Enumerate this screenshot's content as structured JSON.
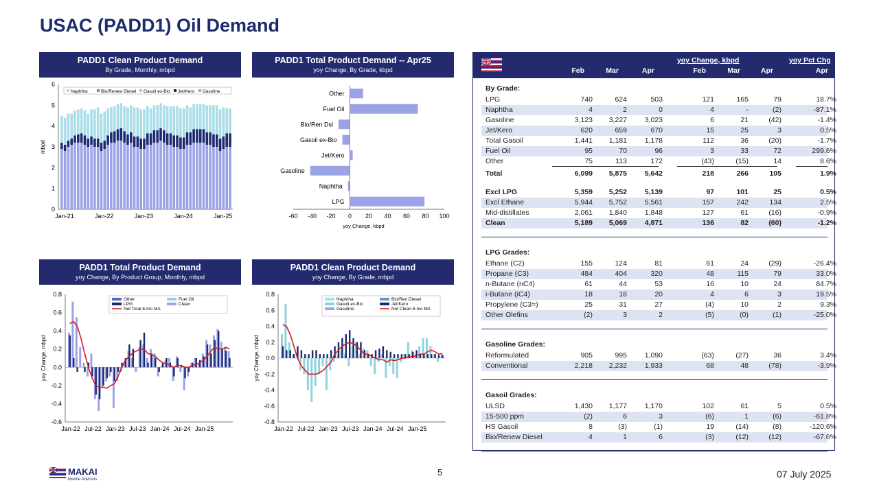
{
  "page_title": "USAC (PADD1) Oil Demand",
  "page_number": "5",
  "date": "07 July 2025",
  "logo": {
    "name": "MAKAI",
    "subtitle": "Marine Advisors"
  },
  "colors": {
    "navy": "#232a6e",
    "naphtha": "#a9dde8",
    "bio": "#6a8fc6",
    "gasoil": "#8fd2de",
    "jet": "#1c2a70",
    "gasoline": "#9aa3e6",
    "ma": "#d7191c"
  },
  "panels": {
    "p1": {
      "title": "PADD1 Clean Product Demand",
      "subtitle": "By Grade, Monthly, mbpd"
    },
    "p2": {
      "title": "PADD1 Total Product Demand -- Apr25",
      "subtitle": "yoy Change, By Grade, kbpd"
    },
    "p3": {
      "title": "PADD1 Total Product Demand",
      "subtitle": "yoy Change, By Product Group, Monthly, mbpd"
    },
    "p4": {
      "title": "PADD1 Clean Product Demand",
      "subtitle": "yoy Change, By Grade, mbpd"
    }
  },
  "chart_data": [
    {
      "type": "bar",
      "stacked": true,
      "ylabel": "mbpd",
      "ylim": [
        0,
        6
      ],
      "yticks": [
        "0",
        "1",
        "2",
        "3",
        "4",
        "5",
        "6"
      ],
      "xticks": [
        "Jan-21",
        "Jan-22",
        "Jan-23",
        "Jan-24",
        "Jan-25"
      ],
      "legend": [
        "Naphtha",
        "Bio/Renew Diesel",
        "Gasoil ex-Bio",
        "Jet/Kero",
        "Gasoline"
      ],
      "gasoline": [
        2.9,
        2.8,
        3.0,
        3.1,
        3.2,
        3.2,
        3.2,
        3.1,
        3.0,
        3.1,
        3.0,
        3.0,
        2.8,
        2.9,
        3.1,
        3.2,
        3.2,
        3.3,
        3.3,
        3.2,
        3.1,
        3.2,
        3.0,
        3.0,
        2.9,
        2.9,
        3.1,
        3.1,
        3.2,
        3.2,
        3.3,
        3.2,
        3.1,
        3.1,
        3.0,
        3.0,
        2.9,
        2.9,
        3.1,
        3.1,
        3.2,
        3.2,
        3.2,
        3.2,
        3.1,
        3.1,
        3.0,
        3.0,
        2.8,
        2.9,
        3.0,
        3.0
      ],
      "jet": [
        0.3,
        0.3,
        0.3,
        0.3,
        0.35,
        0.4,
        0.45,
        0.45,
        0.4,
        0.4,
        0.4,
        0.4,
        0.4,
        0.4,
        0.45,
        0.5,
        0.55,
        0.55,
        0.6,
        0.55,
        0.5,
        0.5,
        0.5,
        0.5,
        0.5,
        0.5,
        0.55,
        0.55,
        0.6,
        0.6,
        0.6,
        0.6,
        0.55,
        0.55,
        0.55,
        0.55,
        0.55,
        0.55,
        0.6,
        0.6,
        0.65,
        0.65,
        0.65,
        0.65,
        0.6,
        0.6,
        0.6,
        0.6,
        0.6,
        0.6,
        0.65,
        0.65
      ],
      "gasoil": [
        1.3,
        1.3,
        1.3,
        1.2,
        1.2,
        1.2,
        1.2,
        1.2,
        1.2,
        1.3,
        1.4,
        1.5,
        1.4,
        1.4,
        1.3,
        1.2,
        1.2,
        1.2,
        1.2,
        1.2,
        1.3,
        1.3,
        1.4,
        1.4,
        1.4,
        1.4,
        1.3,
        1.2,
        1.2,
        1.2,
        1.2,
        1.2,
        1.3,
        1.3,
        1.4,
        1.4,
        1.4,
        1.4,
        1.3,
        1.2,
        1.2,
        1.2,
        1.2,
        1.2,
        1.3,
        1.3,
        1.4,
        1.4,
        1.4,
        1.4,
        1.2,
        1.2
      ]
    },
    {
      "type": "bar",
      "orientation": "horizontal",
      "categories": [
        "Other",
        "Fuel Oil",
        "Bio/Ren Dsl",
        "Gasoil ex-Bio",
        "Jet/Kero",
        "Gasoline",
        "Naphtha",
        "LPG"
      ],
      "values": [
        14,
        72,
        -12,
        -8,
        3,
        -42,
        -2,
        79
      ],
      "xlim": [
        -60,
        100
      ],
      "xticks": [
        "-60",
        "-40",
        "-20",
        "0",
        "20",
        "40",
        "60",
        "80",
        "100"
      ],
      "xlabel": "yoy Change, kbpd"
    },
    {
      "type": "bar",
      "ylabel": "yoy Change, mbpd",
      "ylim": [
        -0.6,
        0.8
      ],
      "yticks": [
        "-0.6",
        "-0.4",
        "-0.2",
        "0.0",
        "0.2",
        "0.4",
        "0.6",
        "0.8"
      ],
      "xticks": [
        "Jan-22",
        "Jul-22",
        "Jan-23",
        "Jul-23",
        "Jan-24",
        "Jul-24",
        "Jan-25"
      ],
      "legend": [
        "Other",
        "Fuel Oil",
        "LPG",
        "Clean",
        "Net Total 6-mo MA"
      ],
      "clean": [
        0.38,
        0.72,
        0.55,
        0.22,
        0.05,
        -0.1,
        0.15,
        -0.35,
        -0.48,
        -0.22,
        -0.15,
        -0.1,
        -0.45,
        -0.15,
        -0.05,
        0.05,
        0.18,
        0.1,
        -0.05,
        0.22,
        0.25,
        0.1,
        0.2,
        0.15,
        -0.1,
        0.02,
        0.08,
        0.1,
        -0.15,
        0.12,
        -0.05,
        -0.25,
        -0.1,
        0.05,
        0.1,
        0.05,
        0.15,
        0.3,
        0.25,
        0.35,
        0.42,
        0.28,
        0.22,
        0.18
      ],
      "lpg": [
        0.35,
        0.1,
        -0.05,
        0.0,
        -0.05,
        0.05,
        -0.1,
        -0.3,
        -0.35,
        -0.2,
        -0.12,
        -0.05,
        -0.15,
        -0.05,
        0.05,
        0.1,
        0.25,
        0.2,
        0.0,
        0.3,
        0.38,
        0.05,
        0.15,
        0.1,
        -0.05,
        0.05,
        0.1,
        0.05,
        -0.1,
        0.1,
        0.02,
        -0.12,
        -0.05,
        0.05,
        0.1,
        0.08,
        0.12,
        0.25,
        0.15,
        0.3,
        0.4,
        0.2,
        0.18,
        0.1
      ],
      "ma": [
        0.48,
        0.5,
        0.45,
        0.32,
        0.15,
        0.0,
        -0.12,
        -0.2,
        -0.22,
        -0.22,
        -0.23,
        -0.2,
        -0.18,
        -0.1,
        0.0,
        0.08,
        0.12,
        0.16,
        0.18,
        0.2,
        0.2,
        0.15,
        0.14,
        0.12,
        0.08,
        0.05,
        0.04,
        0.02,
        0.0,
        0.02,
        0.02,
        0.0,
        0.0,
        0.02,
        0.03,
        0.05,
        0.08,
        0.12,
        0.18,
        0.22,
        0.2,
        0.2,
        0.22,
        0.2
      ]
    },
    {
      "type": "bar",
      "ylabel": "yoy Change, mbpd",
      "ylim": [
        -0.8,
        0.8
      ],
      "yticks": [
        "-0.8",
        "-0.6",
        "-0.4",
        "-0.2",
        "0.0",
        "0.2",
        "0.4",
        "0.6",
        "0.8"
      ],
      "xticks": [
        "Jan-22",
        "Jul-22",
        "Jan-23",
        "Jul-23",
        "Jan-24",
        "Jul-24",
        "Jan-25"
      ],
      "legend": [
        "Naphtha",
        "Bio/Ren Diesel",
        "Gasoil ex-Bio",
        "Jet/Kero",
        "Gasoline",
        "Net Clean 6-mo MA"
      ],
      "gasoil": [
        0.3,
        0.68,
        0.2,
        0.05,
        0.0,
        -0.15,
        -0.2,
        -0.4,
        -0.55,
        -0.35,
        -0.2,
        -0.1,
        -0.4,
        -0.15,
        -0.05,
        0.05,
        0.1,
        0.05,
        -0.1,
        0.15,
        0.2,
        0.05,
        0.12,
        0.1,
        -0.1,
        -0.2,
        -0.05,
        0.05,
        -0.25,
        -0.1,
        -0.2,
        -0.25,
        -0.05,
        0.05,
        0.2,
        0.1,
        0.05,
        0.15,
        0.25,
        0.25,
        0.15,
        0.05,
        -0.05,
        0.05
      ],
      "jet": [
        0.15,
        0.1,
        0.1,
        0.05,
        0.15,
        0.1,
        0.05,
        0.05,
        0.1,
        0.1,
        0.05,
        0.05,
        0.05,
        0.1,
        0.15,
        0.2,
        0.25,
        0.3,
        0.35,
        0.25,
        0.2,
        0.2,
        0.1,
        0.05,
        0.05,
        0.1,
        0.12,
        0.15,
        0.1,
        0.08,
        0.05,
        0.05,
        0.05,
        0.05,
        0.05,
        0.08,
        0.1,
        0.05,
        0.05,
        0.05,
        0.05,
        0.05,
        0.04,
        0.04
      ],
      "ma": [
        0.42,
        0.4,
        0.3,
        0.15,
        0.0,
        -0.1,
        -0.15,
        -0.2,
        -0.2,
        -0.2,
        -0.18,
        -0.15,
        -0.1,
        -0.05,
        0.05,
        0.1,
        0.15,
        0.18,
        0.2,
        0.18,
        0.15,
        0.1,
        0.05,
        0.05,
        0.02,
        0.0,
        -0.02,
        -0.02,
        -0.05,
        -0.02,
        -0.03,
        -0.02,
        0.0,
        0.0,
        0.02,
        0.02,
        0.03,
        0.05,
        0.05,
        0.08,
        0.1,
        0.08,
        0.05,
        0.06
      ]
    }
  ],
  "table": {
    "header": {
      "group1": "yoy Change, kbpd",
      "group2": "yoy Pct Chg",
      "cols": [
        "Feb",
        "Mar",
        "Apr",
        "Feb",
        "Mar",
        "Apr",
        "Apr"
      ]
    },
    "sections": [
      {
        "title": "By Grade:",
        "rows": [
          [
            "LPG",
            "740",
            "624",
            "503",
            "121",
            "165",
            "79",
            "18.7%"
          ],
          [
            "Naphtha",
            "4",
            "2",
            "0",
            "4",
            "-",
            "(2)",
            "-87.1%"
          ],
          [
            "Gasoline",
            "3,123",
            "3,227",
            "3,023",
            "6",
            "21",
            "(42)",
            "-1.4%"
          ],
          [
            "Jet/Kero",
            "620",
            "659",
            "670",
            "15",
            "25",
            "3",
            "0.5%"
          ],
          [
            "Total Gasoil",
            "1,441",
            "1,181",
            "1,178",
            "112",
            "36",
            "(20)",
            "-1.7%"
          ],
          [
            "Fuel Oil",
            "95",
            "70",
            "96",
            "3",
            "33",
            "72",
            "299.6%"
          ],
          [
            "Other",
            "75",
            "113",
            "172",
            "(43)",
            "(15)",
            "14",
            "8.6%"
          ]
        ]
      },
      {
        "title": "",
        "rows": [
          [
            "Total",
            "6,099",
            "5,875",
            "5,642",
            "218",
            "266",
            "105",
            "1.9%"
          ]
        ]
      },
      {
        "title": "",
        "rows": [
          [
            "Excl LPG",
            "5,359",
            "5,252",
            "5,139",
            "97",
            "101",
            "25",
            "0.5%"
          ],
          [
            "Excl Ethane",
            "5,944",
            "5,752",
            "5,561",
            "157",
            "242",
            "134",
            "2.5%"
          ],
          [
            "Mid-distillates",
            "2,061",
            "1,840",
            "1,848",
            "127",
            "61",
            "(16)",
            "-0.9%"
          ],
          [
            "Clean",
            "5,189",
            "5,069",
            "4,871",
            "136",
            "82",
            "(60)",
            "-1.2%"
          ]
        ]
      },
      {
        "title": "LPG Grades:",
        "rows": [
          [
            "Ethane (C2)",
            "155",
            "124",
            "81",
            "61",
            "24",
            "(29)",
            "-26.4%"
          ],
          [
            "Propane (C3)",
            "484",
            "404",
            "320",
            "48",
            "115",
            "79",
            "33.0%"
          ],
          [
            "n-Butane (nC4)",
            "61",
            "44",
            "53",
            "16",
            "10",
            "24",
            "84.7%"
          ],
          [
            "i-Butane (iC4)",
            "18",
            "18",
            "20",
            "4",
            "6",
            "3",
            "19.5%"
          ],
          [
            "Propylene (C3=)",
            "25",
            "31",
            "27",
            "(4)",
            "10",
            "2",
            "9.3%"
          ],
          [
            "Other Olefins",
            "(2)",
            "3",
            "2",
            "(5)",
            "(0)",
            "(1)",
            "-25.0%"
          ]
        ]
      },
      {
        "title": "Gasoline Grades:",
        "rows": [
          [
            "Reformulated",
            "905",
            "995",
            "1,090",
            "(63)",
            "(27)",
            "36",
            "3.4%"
          ],
          [
            "Conventional",
            "2,218",
            "2,232",
            "1,933",
            "68",
            "48",
            "(78)",
            "-3.9%"
          ]
        ]
      },
      {
        "title": "Gasoil Grades:",
        "rows": [
          [
            "ULSD",
            "1,430",
            "1,177",
            "1,170",
            "102",
            "61",
            "5",
            "0.5%"
          ],
          [
            "15-500 ppm",
            "(2)",
            "6",
            "3",
            "(6)",
            "1",
            "(6)",
            "-61.8%"
          ],
          [
            "HS Gasoil",
            "8",
            "(3)",
            "(1)",
            "19",
            "(14)",
            "(8)",
            "-120.6%"
          ],
          [
            "Bio/Renew Diesel",
            "4",
            "1",
            "6",
            "(3)",
            "(12)",
            "(12)",
            "-67.6%"
          ]
        ]
      }
    ]
  }
}
